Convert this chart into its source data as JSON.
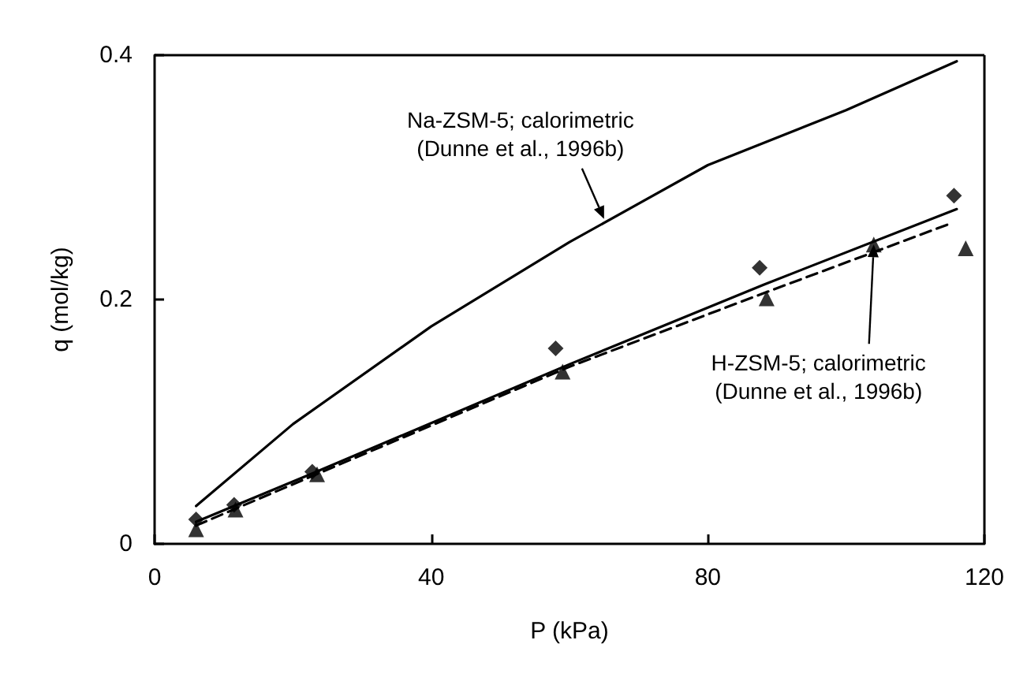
{
  "chart_data": {
    "type": "line",
    "xlabel": "P (kPa)",
    "ylabel": "q (mol/kg)",
    "xlim": [
      0,
      120
    ],
    "xticks": [
      0,
      40,
      80,
      120
    ],
    "ylim": [
      0,
      0.4
    ],
    "yticks": [
      0,
      0.2,
      0.4
    ],
    "grid": false,
    "series": [
      {
        "color": "#000000",
        "line_style": "solid",
        "marker": "none",
        "x": [
          6,
          20,
          40,
          60,
          80,
          100,
          116
        ],
        "values": [
          0.031,
          0.098,
          0.178,
          0.247,
          0.31,
          0.355,
          0.395
        ]
      },
      {
        "color": "#000000",
        "line_style": "solid",
        "marker": "none",
        "x": [
          6,
          23,
          60,
          88,
          116
        ],
        "values": [
          0.018,
          0.058,
          0.147,
          0.212,
          0.274
        ]
      },
      {
        "color": "#000000",
        "line_style": "dashed",
        "marker": "none",
        "x": [
          6,
          23,
          60,
          88,
          115
        ],
        "values": [
          0.015,
          0.056,
          0.145,
          0.205,
          0.262
        ]
      },
      {
        "type": "scatter",
        "color": "#000000",
        "marker": "diamond",
        "x": [
          6,
          11.5,
          22.8,
          58,
          87.5,
          115.6
        ],
        "values": [
          0.02,
          0.032,
          0.059,
          0.16,
          0.226,
          0.285
        ]
      },
      {
        "type": "scatter",
        "color": "#000000",
        "marker": "triangle",
        "x": [
          6,
          11.7,
          23.5,
          59,
          88.5,
          104,
          117.3
        ],
        "values": [
          0.012,
          0.028,
          0.057,
          0.141,
          0.201,
          0.245,
          0.242
        ]
      }
    ],
    "annotations": [
      {
        "text": "Na-ZSM-5; calorimetric\n(Dunne et al., 1996b)",
        "x": 65,
        "y": 0.266
      },
      {
        "text": "H-ZSM-5; calorimetric\n(Dunne et al., 1996b)",
        "x": 104,
        "y": 0.245
      }
    ]
  }
}
